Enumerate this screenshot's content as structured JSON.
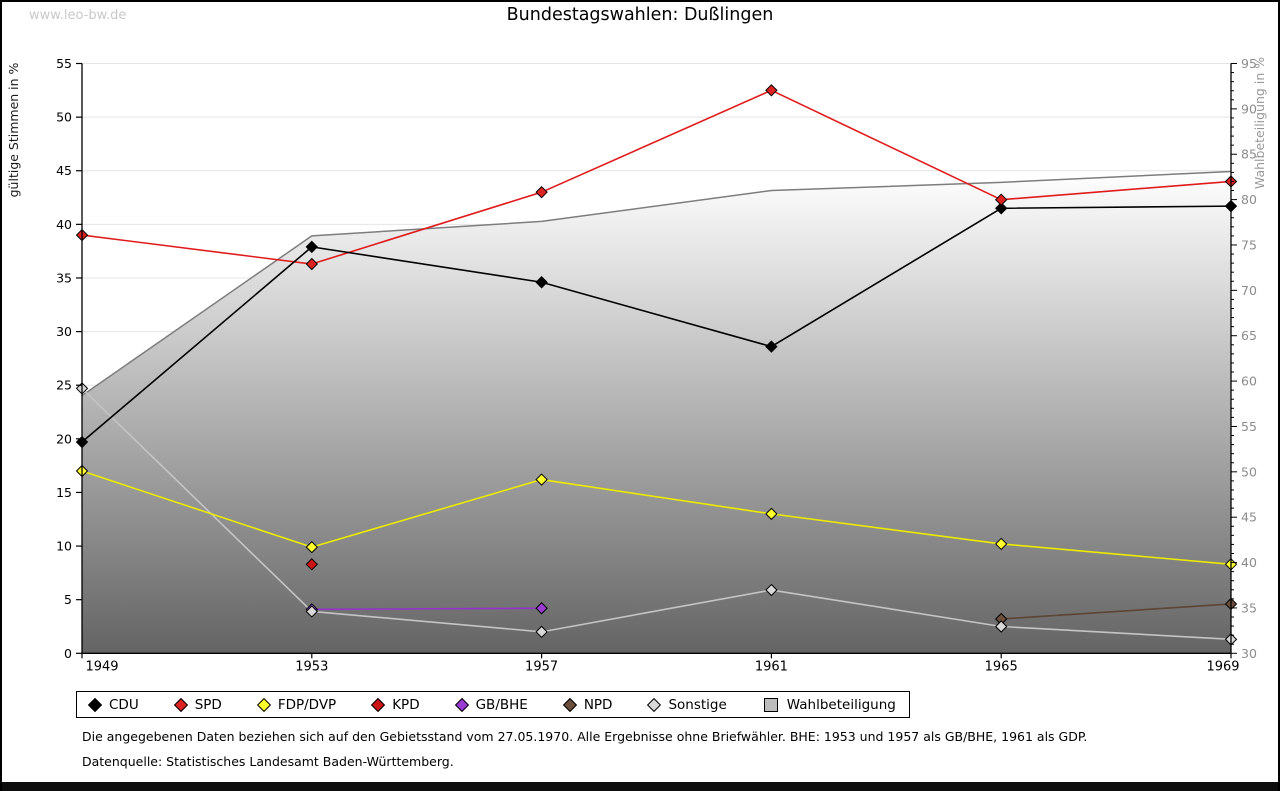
{
  "watermark": "www.leo-bw.de",
  "title": "Bundestagswahlen: Dußlingen",
  "footnotes": {
    "line1": "Die angegebenen Daten beziehen sich auf den Gebietsstand vom 27.05.1970. Alle Ergebnisse ohne Briefwähler. BHE: 1953 und 1957 als GB/BHE, 1961 als GDP.",
    "line2": "Datenquelle: Statistisches Landesamt Baden-Württemberg."
  },
  "chart_data": {
    "type": "line",
    "title": "Bundestagswahlen: Dußlingen",
    "x": [
      "1949",
      "1953",
      "1957",
      "1961",
      "1965",
      "1969"
    ],
    "ylabel_left": "gültige Stimmen in %",
    "ylabel_right": "Wahlbeteiligung in %",
    "ylim_left": [
      0,
      55
    ],
    "ylim_right": [
      30,
      95
    ],
    "yticks_left": [
      0,
      5,
      10,
      15,
      20,
      25,
      30,
      35,
      40,
      45,
      50,
      55
    ],
    "yticks_right": [
      30,
      35,
      40,
      45,
      50,
      55,
      60,
      65,
      70,
      75,
      80,
      85,
      90,
      95
    ],
    "grid": "horizontal",
    "legend_position": "bottom",
    "series": [
      {
        "name": "CDU",
        "axis": "left",
        "marker": "diamond",
        "color": "#000000",
        "marker_fill": "#000000",
        "values": [
          19.7,
          37.9,
          34.6,
          28.6,
          41.5,
          41.7
        ]
      },
      {
        "name": "SPD",
        "axis": "left",
        "marker": "diamond",
        "color": "#e01b1b",
        "marker_fill": "#dd2222",
        "values": [
          39.0,
          36.3,
          43.0,
          52.5,
          42.3,
          44.0
        ]
      },
      {
        "name": "FDP/DVP",
        "axis": "left",
        "marker": "diamond",
        "color": "#ebeb00",
        "marker_fill": "#ffff2e",
        "values": [
          17.0,
          9.9,
          16.2,
          13.0,
          10.2,
          8.3
        ]
      },
      {
        "name": "KPD",
        "axis": "left",
        "marker": "diamond",
        "color": "#b01010",
        "marker_fill": "#cc1414",
        "values": [
          null,
          8.3,
          null,
          null,
          null,
          null
        ]
      },
      {
        "name": "GB/BHE",
        "axis": "left",
        "marker": "diamond",
        "color": "#9333cc",
        "marker_fill": "#9a3bd4",
        "values": [
          null,
          4.1,
          4.2,
          null,
          null,
          null
        ]
      },
      {
        "name": "NPD",
        "axis": "left",
        "marker": "diamond",
        "color": "#5e4434",
        "marker_fill": "#6b4e3c",
        "values": [
          null,
          null,
          null,
          null,
          3.2,
          4.6
        ]
      },
      {
        "name": "Sonstige",
        "axis": "left",
        "marker": "diamond",
        "color": "#c4c4c4",
        "marker_fill": "#d8d8d8",
        "values": [
          24.7,
          3.9,
          2.0,
          5.9,
          2.5,
          1.3
        ]
      },
      {
        "name": "Wahlbeteiligung",
        "axis": "right",
        "marker": "square",
        "type": "area",
        "color": "#7d7d7d",
        "marker_fill": "#bcbcbc",
        "area_fill_top": "#ffffff",
        "area_fill_bottom": "#646464",
        "values": [
          58.4,
          76.0,
          77.6,
          81.0,
          81.9,
          83.1
        ]
      }
    ]
  }
}
